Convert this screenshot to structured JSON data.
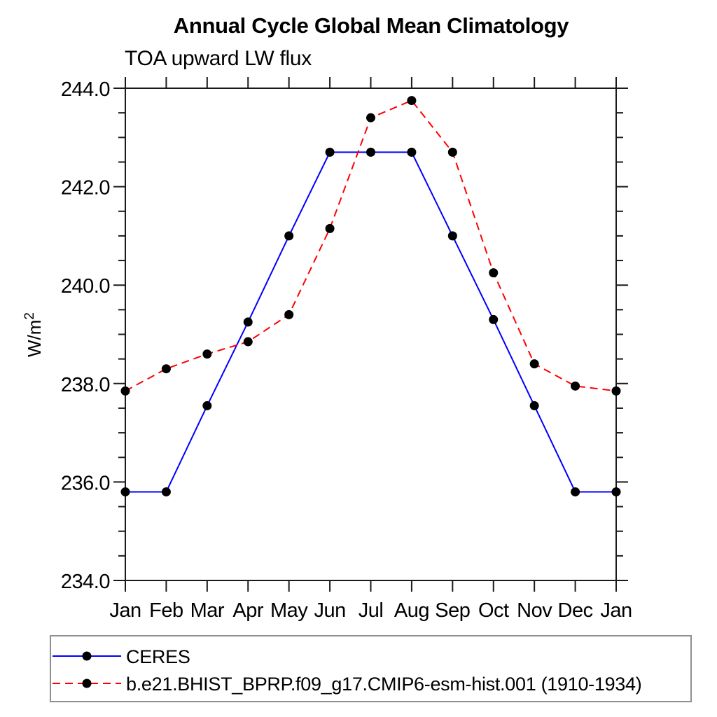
{
  "chart_data": {
    "type": "line",
    "title": "Annual Cycle Global Mean Climatology",
    "subtitle": "TOA upward LW flux",
    "ylabel": {
      "base": "W/m",
      "sup": "2"
    },
    "categories": [
      "Jan",
      "Feb",
      "Mar",
      "Apr",
      "May",
      "Jun",
      "Jul",
      "Aug",
      "Sep",
      "Oct",
      "Nov",
      "Dec",
      "Jan"
    ],
    "ylim": [
      234.0,
      244.0
    ],
    "ytick_values": [
      234.0,
      236.0,
      238.0,
      240.0,
      242.0,
      244.0
    ],
    "ytick_labels": [
      "234.0",
      "236.0",
      "238.0",
      "240.0",
      "242.0",
      "244.0"
    ],
    "ytick_major_step": 2.0,
    "ytick_minor_step": 0.5,
    "grid": "off",
    "legend_position": "below-left",
    "axis_color": "#1a1a1a",
    "marker_color": "#000000",
    "series": [
      {
        "name": "CERES",
        "color": "#0000ff",
        "style": "solid",
        "values": [
          235.8,
          235.8,
          237.55,
          239.25,
          241.0,
          242.7,
          242.7,
          242.7,
          241.0,
          239.3,
          237.55,
          235.8,
          235.8
        ]
      },
      {
        "name": "b.e21.BHIST_BPRP.f09_g17.CMIP6-esm-hist.001 (1910-1934)",
        "color": "#ff0000",
        "style": "dashed",
        "values": [
          237.85,
          238.3,
          238.6,
          238.85,
          239.4,
          241.15,
          243.4,
          243.75,
          242.7,
          240.25,
          238.4,
          237.95,
          237.85
        ]
      }
    ]
  }
}
